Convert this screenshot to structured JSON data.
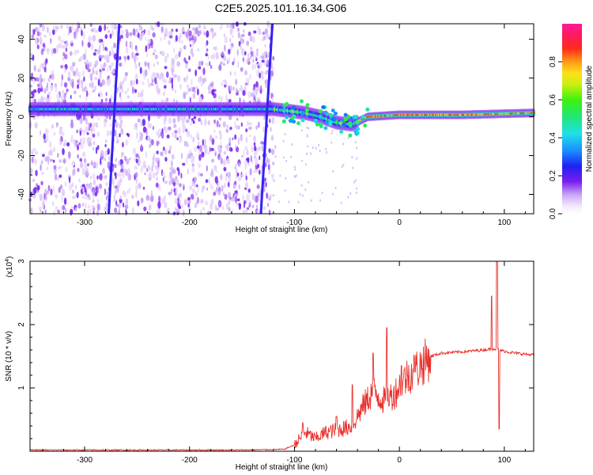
{
  "title": "C2E5.2025.101.16.34.G06",
  "colors": {
    "spectrum_background": "#ffffff",
    "snr_line": "#e8332e"
  },
  "chart_data": [
    {
      "type": "heatmap",
      "xlabel": "Height of straight line (km)",
      "ylabel": "Frequency (Hz)",
      "xlim": [
        -352,
        128
      ],
      "ylim": [
        -50,
        48
      ],
      "x_ticks": [
        -300,
        -200,
        -100,
        0,
        100
      ],
      "y_ticks": [
        -40,
        -20,
        0,
        20,
        40
      ],
      "colorbar": {
        "label": "Normalized spectral amplitude",
        "range": [
          0,
          1
        ],
        "ticks": [
          "0.0",
          "0.2",
          "0.4",
          "0.6",
          "0.8"
        ],
        "colormap": "rainbow (white-purple-blue-cyan-green-yellow-red-magenta)"
      },
      "features": {
        "noise_region_x": [
          -352,
          -120
        ],
        "main_band": [
          {
            "x": -350,
            "f": 4
          },
          {
            "x": -200,
            "f": 4
          },
          {
            "x": -120,
            "f": 4
          },
          {
            "x": -90,
            "f": 2
          },
          {
            "x": -75,
            "f": 0
          },
          {
            "x": -60,
            "f": -3
          },
          {
            "x": -45,
            "f": -4
          },
          {
            "x": -30,
            "f": 0
          },
          {
            "x": 0,
            "f": 1
          },
          {
            "x": 60,
            "f": 1
          },
          {
            "x": 128,
            "f": 2
          }
        ],
        "streaks": [
          {
            "x_top": -267,
            "x_bottom": -277
          },
          {
            "x_top": -121,
            "x_bottom": -132
          }
        ]
      }
    },
    {
      "type": "line",
      "xlabel": "Height of straight line (km)",
      "ylabel": "SNR (10 * v/v)",
      "y_multiplier": "(x10",
      "y_multiplier_exp": "4",
      "xlim": [
        -352,
        128
      ],
      "ylim": [
        0,
        3
      ],
      "x_ticks": [
        -300,
        -200,
        -100,
        0,
        100
      ],
      "y_ticks": [
        1,
        2,
        3
      ],
      "series": [
        {
          "values": [
            [
              -352,
              0.02
            ],
            [
              -300,
              0.02
            ],
            [
              -250,
              0.02
            ],
            [
              -200,
              0.02
            ],
            [
              -150,
              0.02
            ],
            [
              -110,
              0.03
            ],
            [
              -100,
              0.1
            ],
            [
              -90,
              0.3
            ],
            [
              -80,
              0.2
            ],
            [
              -70,
              0.3
            ],
            [
              -55,
              0.35
            ],
            [
              -45,
              0.4
            ],
            [
              -35,
              0.7
            ],
            [
              -25,
              0.95
            ],
            [
              -15,
              0.8
            ],
            [
              -5,
              0.9
            ],
            [
              5,
              1.15
            ],
            [
              20,
              1.35
            ],
            [
              30,
              1.5
            ],
            [
              40,
              1.55
            ],
            [
              60,
              1.57
            ],
            [
              80,
              1.6
            ],
            [
              90,
              1.62
            ],
            [
              100,
              1.58
            ],
            [
              110,
              1.55
            ],
            [
              128,
              1.52
            ]
          ],
          "spikes": [
            [
              -92,
              0.45
            ],
            [
              -60,
              0.55
            ],
            [
              -45,
              1.05
            ],
            [
              -25,
              1.55
            ],
            [
              -12,
              1.95
            ],
            [
              2,
              1.35
            ],
            [
              15,
              1.25
            ],
            [
              88,
              2.45
            ],
            [
              93,
              3.0
            ],
            [
              95,
              0.35
            ]
          ]
        }
      ]
    }
  ]
}
